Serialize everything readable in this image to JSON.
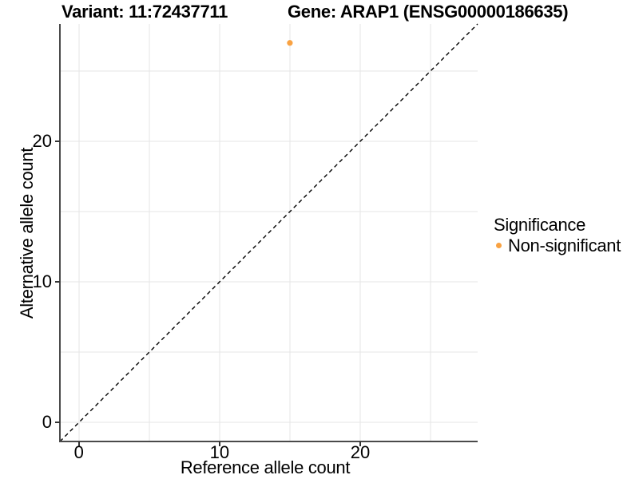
{
  "figure": {
    "title_variant": "Variant: 11:72437711",
    "title_gene": "Gene: ARAP1 (ENSG00000186635)",
    "x_label": "Reference allele count",
    "y_label": "Alternative allele count"
  },
  "legend": {
    "title": "Significance",
    "items": [
      {
        "label": "Non-significant",
        "color": "#F9A242"
      }
    ]
  },
  "chart_data": {
    "type": "scatter",
    "title": "Variant: 11:72437711   Gene: ARAP1 (ENSG00000186635)",
    "xlabel": "Reference allele count",
    "ylabel": "Alternative allele count",
    "xlim": [
      -1.35,
      28.35
    ],
    "ylim": [
      -1.35,
      28.35
    ],
    "x_ticks": [
      0,
      10,
      20
    ],
    "y_ticks": [
      0,
      10,
      20
    ],
    "grid_values": [
      0,
      5,
      10,
      15,
      20,
      25
    ],
    "grid": true,
    "legend_position": "right",
    "series": [
      {
        "name": "Non-significant",
        "color": "#F9A242",
        "points": [
          {
            "x": 15,
            "y": 27
          }
        ]
      }
    ],
    "reference_line": {
      "kind": "identity y=x",
      "style": "dashed",
      "color": "#000000"
    },
    "colors": {
      "gridline": "#e6e6e6",
      "axis_line": "#4a4a4a",
      "tick_mark": "#333333",
      "tick_text": "#000000"
    }
  }
}
